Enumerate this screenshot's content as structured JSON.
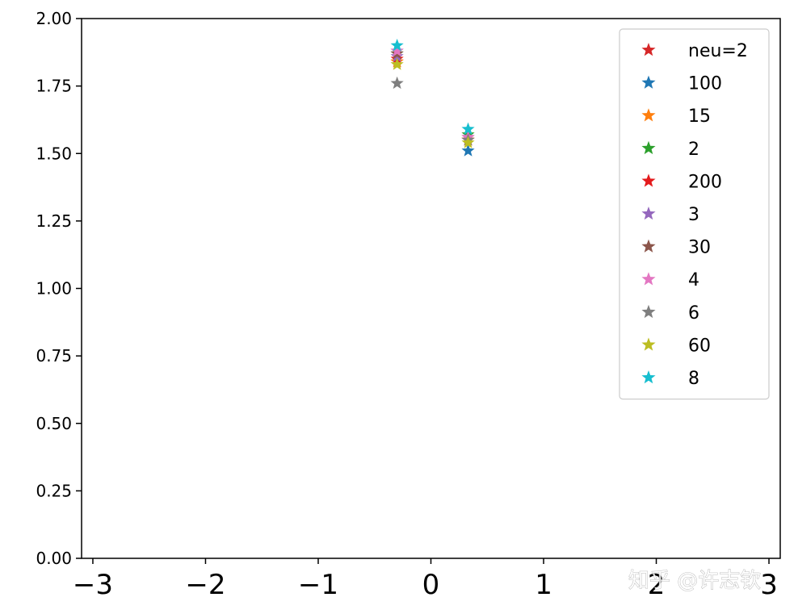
{
  "chart_data": {
    "type": "scatter",
    "marker": "star",
    "xlim": [
      -3.1,
      3.1
    ],
    "ylim": [
      0,
      2
    ],
    "xticks": [
      -3,
      -2,
      -1,
      0,
      1,
      2,
      3
    ],
    "xtick_labels": [
      "−3",
      "−2",
      "−1",
      "0",
      "1",
      "2",
      "3"
    ],
    "yticks": [
      0,
      0.25,
      0.5,
      0.75,
      1.0,
      1.25,
      1.5,
      1.75,
      2.0
    ],
    "ytick_labels": [
      "0.00",
      "0.25",
      "0.50",
      "0.75",
      "1.00",
      "1.25",
      "1.50",
      "1.75",
      "2.00"
    ],
    "grid": false,
    "legend_position": "top-right",
    "series": [
      {
        "name": "neu=2",
        "color": "#d62728",
        "x": [
          -0.3,
          0.33
        ],
        "y": [
          1.84,
          1.55
        ]
      },
      {
        "name": "100",
        "color": "#1f77b4",
        "x": [
          -0.3,
          0.33
        ],
        "y": [
          1.88,
          1.51
        ]
      },
      {
        "name": "15",
        "color": "#ff7f0e",
        "x": [
          -0.3,
          0.33
        ],
        "y": [
          1.84,
          1.55
        ]
      },
      {
        "name": "2",
        "color": "#2ca02c",
        "x": [
          -0.3,
          0.33
        ],
        "y": [
          1.87,
          1.57
        ]
      },
      {
        "name": "200",
        "color": "#e41a1c",
        "x": [
          -0.3,
          0.33
        ],
        "y": [
          1.85,
          1.55
        ]
      },
      {
        "name": "3",
        "color": "#9467bd",
        "x": [
          -0.3,
          0.33
        ],
        "y": [
          1.86,
          1.56
        ]
      },
      {
        "name": "30",
        "color": "#8c564b",
        "x": [
          -0.3,
          0.33
        ],
        "y": [
          1.87,
          1.56
        ]
      },
      {
        "name": "4",
        "color": "#e377c2",
        "x": [
          -0.3,
          0.33
        ],
        "y": [
          1.88,
          1.56
        ]
      },
      {
        "name": "6",
        "color": "#7f7f7f",
        "x": [
          -0.3,
          0.33
        ],
        "y": [
          1.76,
          1.55
        ]
      },
      {
        "name": "60",
        "color": "#bcbd22",
        "x": [
          -0.3,
          0.33
        ],
        "y": [
          1.83,
          1.54
        ]
      },
      {
        "name": "8",
        "color": "#17becf",
        "x": [
          -0.3,
          0.33
        ],
        "y": [
          1.9,
          1.59
        ]
      }
    ]
  },
  "watermark": "知乎 @许志钦"
}
